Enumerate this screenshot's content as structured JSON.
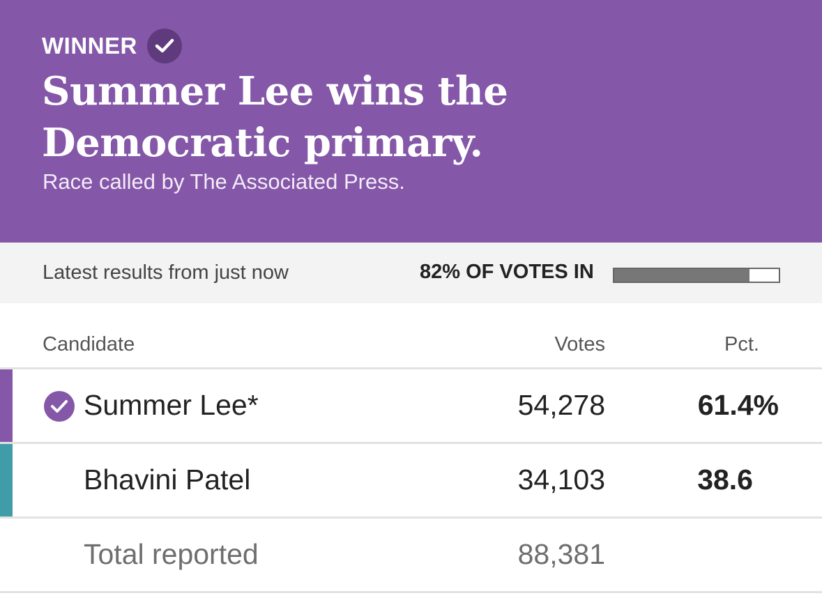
{
  "banner": {
    "winner_label": "WINNER",
    "headline": "Summer Lee wins the Democratic primary.",
    "subhead": "Race called by The Associated Press.",
    "background_color": "#8457a8",
    "icon": "check-circle-icon"
  },
  "status": {
    "latest": "Latest results from just now",
    "votes_in_label": "82% OF VOTES IN",
    "reporting_fraction": 0.82
  },
  "table": {
    "headers": {
      "candidate": "Candidate",
      "votes": "Votes",
      "pct": "Pct."
    },
    "rows": [
      {
        "name": "Summer Lee*",
        "votes": "54,278",
        "pct": "61.4%",
        "winner": true,
        "color": "#8457a8"
      },
      {
        "name": "Bhavini Patel",
        "votes": "34,103",
        "pct": "38.6",
        "winner": false,
        "color": "#3f9ca8"
      }
    ],
    "total": {
      "label": "Total reported",
      "votes": "88,381"
    }
  }
}
